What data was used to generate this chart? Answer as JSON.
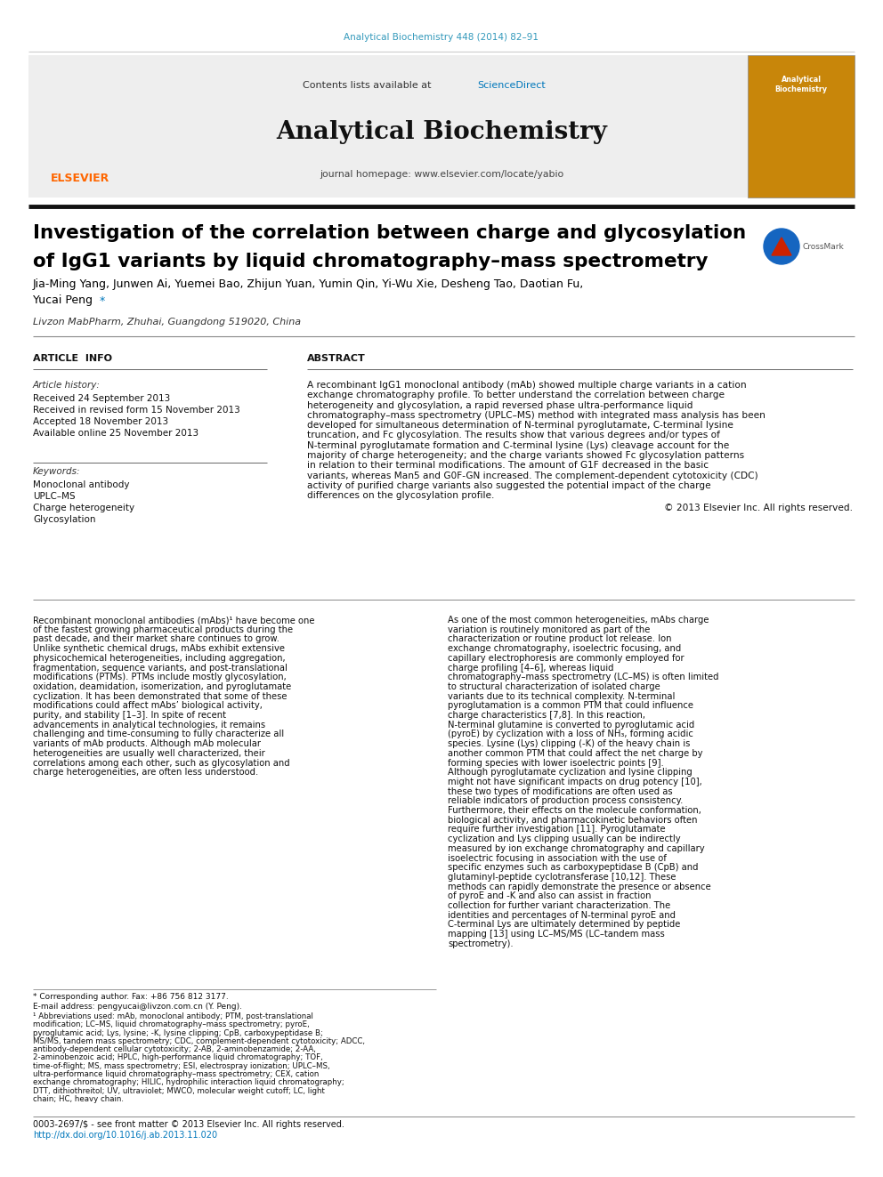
{
  "journal_ref": "Analytical Biochemistry 448 (2014) 82–91",
  "journal_ref_color": "#3399bb",
  "sciencedirect_color": "#0077bb",
  "journal_name": "Analytical Biochemistry",
  "journal_homepage": "journal homepage: www.elsevier.com/locate/yabio",
  "elsevier_color": "#ff6600",
  "title_line1": "Investigation of the correlation between charge and glycosylation",
  "title_line2": "of IgG1 variants by liquid chromatography–mass spectrometry",
  "authors_line1": "Jia-Ming Yang, Junwen Ai, Yuemei Bao, Zhijun Yuan, Yumin Qin, Yi-Wu Xie, Desheng Tao, Daotian Fu,",
  "authors_line2": "Yucai Peng",
  "affiliation": "Livzon MabPharm, Zhuhai, Guangdong 519020, China",
  "article_info_label": "ARTICLE  INFO",
  "abstract_label": "ABSTRACT",
  "article_history_label": "Article history:",
  "dates": [
    "Received 24 September 2013",
    "Received in revised form 15 November 2013",
    "Accepted 18 November 2013",
    "Available online 25 November 2013"
  ],
  "keywords_label": "Keywords:",
  "keywords": [
    "Monoclonal antibody",
    "UPLC–MS",
    "Charge heterogeneity",
    "Glycosylation"
  ],
  "abstract_text": "A recombinant IgG1 monoclonal antibody (mAb) showed multiple charge variants in a cation exchange chromatography profile. To better understand the correlation between charge heterogeneity and glycosylation, a rapid reversed phase ultra-performance liquid chromatography–mass spectrometry (UPLC–MS) method with integrated mass analysis has been developed for simultaneous determination of N-terminal pyroglutamate, C-terminal lysine truncation, and Fc glycosylation. The results show that various degrees and/or types of N-terminal pyroglutamate formation and C-terminal lysine (Lys) cleavage account for the majority of charge heterogeneity; and the charge variants showed Fc glycosylation patterns in relation to their terminal modifications. The amount of G1F decreased in the basic variants, whereas Man5 and G0F-GN increased. The complement-dependent cytotoxicity (CDC) activity of purified charge variants also suggested the potential impact of the charge differences on the glycosylation profile.",
  "copyright_abstract": "© 2013 Elsevier Inc. All rights reserved.",
  "body_col1": "Recombinant monoclonal antibodies (mAbs)¹ have become one of the fastest growing pharmaceutical products during the past decade, and their market share continues to grow. Unlike synthetic chemical drugs, mAbs exhibit extensive physicochemical heterogeneities, including aggregation, fragmentation, sequence variants, and post-translational modifications (PTMs). PTMs include mostly glycosylation, oxidation, deamidation, isomerization, and pyroglutamate cyclization. It has been demonstrated that some of these modifications could affect mAbs’ biological activity, purity, and stability [1–3]. In spite of recent advancements in analytical technologies, it remains challenging and time-consuming to fully characterize all variants of mAb products. Although mAb molecular heterogeneities are usually well characterized, their correlations among each other, such as glycosylation and charge heterogeneities, are often less understood.",
  "body_col2": "As one of the most common heterogeneities, mAbs charge variation is routinely monitored as part of the characterization or routine product lot release. Ion exchange chromatography, isoelectric focusing, and capillary electrophoresis are commonly employed for charge profiling [4–6], whereas liquid chromatography–mass spectrometry (LC–MS) is often limited to structural characterization of isolated charge variants due to its technical complexity. N-terminal pyroglutamation is a common PTM that could influence charge characteristics [7,8]. In this reaction, N-terminal glutamine is converted to pyroglutamic acid (pyroE) by cyclization with a loss of NH₃, forming acidic species. Lysine (Lys) clipping (-K) of the heavy chain is another common PTM that could affect the net charge by forming species with lower isoelectric points [9]. Although pyroglutamate cyclization and lysine clipping might not have significant impacts on drug potency [10], these two types of modifications are often used as reliable indicators of production process consistency. Furthermore, their effects on the molecule conformation, biological activity, and pharmacokinetic behaviors often require further investigation [11]. Pyroglutamate cyclization and Lys clipping usually can be indirectly measured by ion exchange chromatography and capillary isoelectric focusing in association with the use of specific enzymes such as carboxypeptidase B (CpB) and glutaminyl-peptide cyclotransferase [10,12]. These methods can rapidly demonstrate the presence or absence of pyroE and -K and also can assist in fraction collection for further variant characterization. The identities and percentages of N-terminal pyroE and C-terminal Lys are ultimately determined by peptide mapping [13] using LC–MS/MS (LC–tandem mass spectrometry).",
  "footnote1": "* Corresponding author. Fax: +86 756 812 3177.",
  "footnote2": "E-mail address: pengyucai@livzon.com.cn (Y. Peng).",
  "footnote3": "¹  Abbreviations used: mAb, monoclonal antibody; PTM, post-translational modification; LC–MS, liquid chromatography–mass spectrometry; pyroE, pyroglutamic acid; Lys, lysine; -K, lysine clipping; CpB, carboxypeptidase B; MS/MS, tandem mass spectrometry; CDC, complement-dependent cytotoxicity; ADCC, antibody-dependent cellular cytotoxicity; 2-AB, 2-aminobenzamide; 2-AA, 2-aminobenzoic acid; HPLC, high-performance liquid chromatography; TOF, time-of-flight; MS, mass spectrometry; ESI, electrospray ionization; UPLC–MS, ultra-performance liquid chromatography–mass spectrometry; CEX, cation exchange chromatography; HILIC, hydrophilic interaction liquid chromatography; DTT, dithiothreitol; UV, ultraviolet; MWCO, molecular weight cutoff; LC, light chain; HC, heavy chain.",
  "issn_text": "0003-2697/$ - see front matter © 2013 Elsevier Inc. All rights reserved.",
  "doi_text": "http://dx.doi.org/10.1016/j.ab.2013.11.020",
  "doi_color": "#0077bb",
  "bg_color": "#ffffff"
}
